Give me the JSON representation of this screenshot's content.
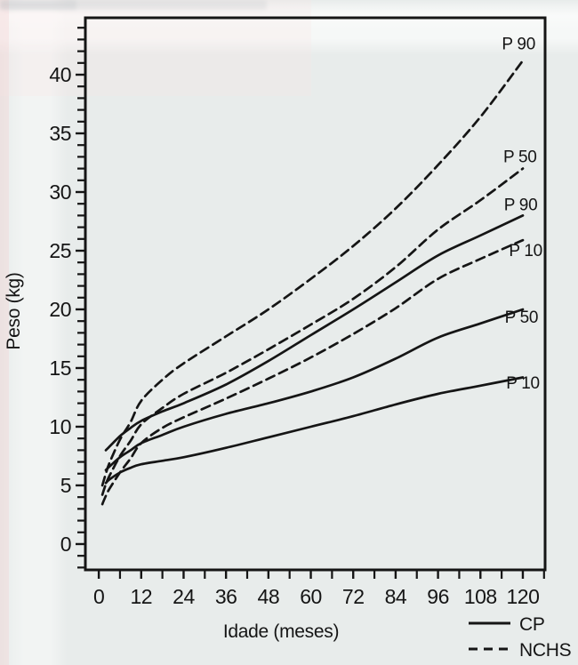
{
  "figure": {
    "kind": "scanned growth chart figure",
    "ink_color": "#151515",
    "paper_color": "#e8eceb"
  },
  "chart_data": {
    "type": "line",
    "title": "",
    "xlabel": "Idade (meses)",
    "ylabel": "Peso (kg)",
    "xlim": [
      -3.8,
      126.3
    ],
    "ylim": [
      -2.2,
      44.85
    ],
    "x_major_ticks": [
      0,
      12,
      24,
      36,
      48,
      60,
      72,
      84,
      96,
      108,
      120
    ],
    "x_minor_tick_step": 6,
    "y_major_ticks": [
      0,
      5,
      10,
      15,
      20,
      25,
      30,
      35,
      40
    ],
    "y_minor_tick_step": 1,
    "grid": false,
    "legend": {
      "position": "bottom-right",
      "entries": [
        {
          "label": "CP",
          "style": "solid"
        },
        {
          "label": "NCHS",
          "style": "dashed"
        }
      ]
    },
    "series": [
      {
        "name": "NCHS P90",
        "dataset": "NCHS",
        "percentile": 90,
        "style": "dashed",
        "label": "P 90",
        "label_at": [
          118.8,
          42.6
        ],
        "points": [
          [
            1,
            5.0
          ],
          [
            2,
            6.0
          ],
          [
            3,
            6.9
          ],
          [
            6,
            8.9
          ],
          [
            9,
            10.4
          ],
          [
            12,
            12.2
          ],
          [
            18,
            14.0
          ],
          [
            24,
            15.4
          ],
          [
            36,
            17.7
          ],
          [
            48,
            20.0
          ],
          [
            60,
            22.6
          ],
          [
            72,
            25.4
          ],
          [
            84,
            28.6
          ],
          [
            96,
            32.3
          ],
          [
            108,
            36.4
          ],
          [
            120,
            41.2
          ]
        ]
      },
      {
        "name": "NCHS P50",
        "dataset": "NCHS",
        "percentile": 50,
        "style": "dashed",
        "label": "P 50",
        "label_at": [
          119.2,
          33.0
        ],
        "points": [
          [
            1,
            4.2
          ],
          [
            2,
            5.1
          ],
          [
            3,
            5.8
          ],
          [
            6,
            7.5
          ],
          [
            9,
            8.8
          ],
          [
            12,
            10.2
          ],
          [
            18,
            11.6
          ],
          [
            24,
            12.8
          ],
          [
            36,
            14.6
          ],
          [
            48,
            16.6
          ],
          [
            60,
            18.7
          ],
          [
            72,
            20.9
          ],
          [
            84,
            23.6
          ],
          [
            96,
            26.8
          ],
          [
            108,
            29.3
          ],
          [
            120,
            32.0
          ]
        ]
      },
      {
        "name": "CP P90",
        "dataset": "CP",
        "percentile": 90,
        "style": "solid",
        "label": "P 90",
        "label_at": [
          119.4,
          28.9
        ],
        "points": [
          [
            2,
            8.0
          ],
          [
            3,
            8.3
          ],
          [
            6,
            9.2
          ],
          [
            9,
            9.9
          ],
          [
            12,
            10.5
          ],
          [
            18,
            11.3
          ],
          [
            24,
            12.0
          ],
          [
            36,
            13.6
          ],
          [
            48,
            15.6
          ],
          [
            60,
            17.8
          ],
          [
            72,
            20.0
          ],
          [
            84,
            22.3
          ],
          [
            96,
            24.6
          ],
          [
            108,
            26.3
          ],
          [
            120,
            28.0
          ]
        ]
      },
      {
        "name": "NCHS P10",
        "dataset": "NCHS",
        "percentile": 10,
        "style": "dashed",
        "label": "P 10",
        "label_at": [
          120.8,
          25.0
        ],
        "points": [
          [
            1,
            3.4
          ],
          [
            2,
            4.1
          ],
          [
            3,
            4.7
          ],
          [
            6,
            6.1
          ],
          [
            9,
            7.3
          ],
          [
            12,
            8.6
          ],
          [
            18,
            9.9
          ],
          [
            24,
            10.8
          ],
          [
            36,
            12.4
          ],
          [
            48,
            14.1
          ],
          [
            60,
            15.9
          ],
          [
            72,
            17.9
          ],
          [
            84,
            20.1
          ],
          [
            96,
            22.6
          ],
          [
            108,
            24.3
          ],
          [
            120,
            25.9
          ]
        ]
      },
      {
        "name": "CP P50",
        "dataset": "CP",
        "percentile": 50,
        "style": "solid",
        "label": "P 50",
        "label_at": [
          119.6,
          19.3
        ],
        "points": [
          [
            2,
            6.3
          ],
          [
            3,
            6.6
          ],
          [
            6,
            7.4
          ],
          [
            9,
            8.0
          ],
          [
            12,
            8.6
          ],
          [
            18,
            9.3
          ],
          [
            24,
            10.0
          ],
          [
            36,
            11.1
          ],
          [
            48,
            12.0
          ],
          [
            60,
            13.0
          ],
          [
            72,
            14.2
          ],
          [
            84,
            15.8
          ],
          [
            96,
            17.6
          ],
          [
            108,
            18.8
          ],
          [
            120,
            20.0
          ]
        ]
      },
      {
        "name": "CP P10",
        "dataset": "CP",
        "percentile": 10,
        "style": "solid",
        "label": "P 10",
        "label_at": [
          120.0,
          13.7
        ],
        "points": [
          [
            2,
            5.2
          ],
          [
            3,
            5.5
          ],
          [
            6,
            6.1
          ],
          [
            9,
            6.5
          ],
          [
            12,
            6.8
          ],
          [
            18,
            7.1
          ],
          [
            24,
            7.4
          ],
          [
            36,
            8.2
          ],
          [
            48,
            9.1
          ],
          [
            60,
            10.0
          ],
          [
            72,
            10.9
          ],
          [
            84,
            11.9
          ],
          [
            96,
            12.8
          ],
          [
            108,
            13.5
          ],
          [
            120,
            14.2
          ]
        ]
      }
    ]
  }
}
